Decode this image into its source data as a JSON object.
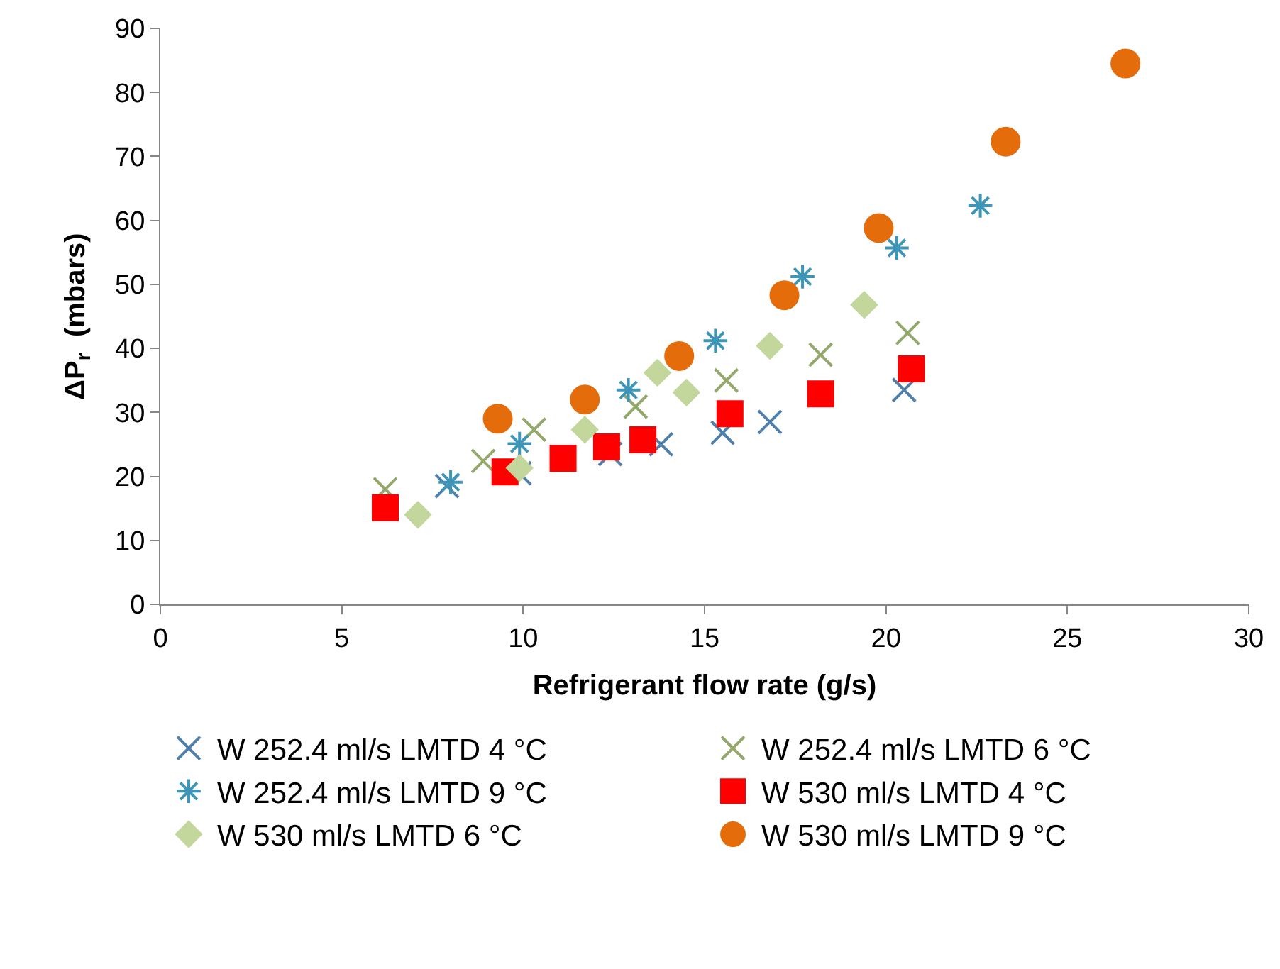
{
  "chart_data": {
    "type": "scatter",
    "xlabel": "Refrigerant flow rate (g/s)",
    "ylabel": "ΔP$_{r}$  (mbars)",
    "xlim": [
      0,
      30
    ],
    "xticks": [
      0,
      5,
      10,
      15,
      20,
      25,
      30
    ],
    "ylim": [
      0,
      90
    ],
    "yticks": [
      0,
      10,
      20,
      30,
      40,
      50,
      60,
      70,
      80,
      90
    ],
    "legend": "bottom",
    "series": [
      {
        "name": "W 252.4 ml/s LMTD 4 °C",
        "color": "#4f7fab",
        "marker": "cross",
        "x": [
          7.9,
          9.9,
          12.4,
          13.8,
          15.5,
          16.8,
          20.5
        ],
        "values": [
          18.5,
          20.5,
          23.5,
          25,
          26.8,
          28.5,
          33.5
        ]
      },
      {
        "name": "W 252.4 ml/s LMTD 6 °C",
        "color": "#93a86a",
        "marker": "cross",
        "x": [
          6.2,
          8.9,
          10.3,
          13.1,
          15.6,
          18.2,
          20.6
        ],
        "values": [
          18,
          22.4,
          27.3,
          30.9,
          35,
          39,
          42.4
        ]
      },
      {
        "name": "W 252.4 ml/s LMTD 9 °C",
        "color": "#3d96b8",
        "x": [
          8.0,
          9.9,
          12.9,
          15.3,
          17.7,
          20.3,
          22.6
        ],
        "values": [
          19.1,
          25.1,
          33.5,
          41.2,
          51.2,
          55.7,
          62.3
        ]
      },
      {
        "name": "W 530 ml/s LMTD 4 °C",
        "color": "#ff0000",
        "marker": "square",
        "x": [
          6.2,
          9.5,
          11.1,
          12.3,
          13.3,
          15.7,
          18.2,
          20.7
        ],
        "values": [
          15.1,
          20.7,
          22.8,
          24.6,
          25.7,
          29.8,
          32.9,
          36.8
        ]
      },
      {
        "name": "W 530 ml/s LMTD 6 °C",
        "color": "#c3d69b",
        "marker": "diamond",
        "x": [
          7.1,
          9.9,
          11.7,
          13.7,
          14.5,
          16.8,
          19.4
        ],
        "values": [
          14,
          21.3,
          27.3,
          36.2,
          33.1,
          40.4,
          46.8
        ]
      },
      {
        "name": "W 530 ml/s LMTD 9 °C",
        "color": "#e46c0a",
        "marker": "circle",
        "x": [
          9.3,
          11.7,
          14.3,
          17.2,
          19.8,
          23.3,
          26.6
        ],
        "values": [
          29,
          32,
          38.8,
          48.3,
          58.8,
          72.3,
          84.5
        ]
      }
    ]
  }
}
